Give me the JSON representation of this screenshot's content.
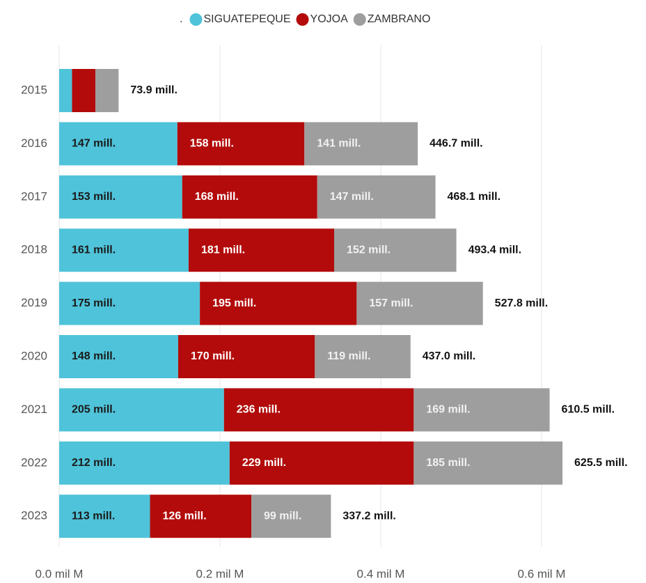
{
  "chart_data": {
    "type": "stacked_bar_horizontal",
    "legend_title": ".",
    "legend": "top",
    "categories": [
      "2015",
      "2016",
      "2017",
      "2018",
      "2019",
      "2020",
      "2021",
      "2022",
      "2023"
    ],
    "series": [
      {
        "name": "SIGUATEPEQUE",
        "color": "#4fc3d9",
        "label_color": "#1a1a1a",
        "values": [
          16,
          147,
          153,
          161,
          175,
          148,
          205,
          212,
          113
        ],
        "value_labels": [
          null,
          "147 mill.",
          "153 mill.",
          "161 mill.",
          "175 mill.",
          "148 mill.",
          "205 mill.",
          "212 mill.",
          "113 mill."
        ]
      },
      {
        "name": "YOJOA",
        "color": "#b30b0b",
        "label_color": "#ffffff",
        "values": [
          29,
          158,
          168,
          181,
          195,
          170,
          236,
          229,
          126
        ],
        "value_labels": [
          null,
          "158 mill.",
          "168 mill.",
          "181 mill.",
          "195 mill.",
          "170 mill.",
          "236 mill.",
          "229 mill.",
          "126 mill."
        ]
      },
      {
        "name": "ZAMBRANO",
        "color": "#9e9e9e",
        "label_color": "#f2f2f2",
        "values": [
          28.9,
          141,
          147,
          152,
          157,
          119,
          169,
          185,
          99
        ],
        "value_labels": [
          null,
          "141 mill.",
          "147 mill.",
          "152 mill.",
          "157 mill.",
          "119 mill.",
          "169 mill.",
          "185 mill.",
          "99 mill."
        ]
      }
    ],
    "totals": [
      73.9,
      446.7,
      468.1,
      493.4,
      527.8,
      437.0,
      610.5,
      625.5,
      337.2
    ],
    "total_labels": [
      "73.9 mill.",
      "446.7 mill.",
      "468.1 mill.",
      "493.4 mill.",
      "527.8 mill.",
      "437.0 mill.",
      "610.5 mill.",
      "625.5 mill.",
      "337.2 mill."
    ],
    "xlim": [
      0,
      700
    ],
    "xticks": [
      {
        "value": 0,
        "label": "0.0 mil M"
      },
      {
        "value": 200,
        "label": "0.2 mil M"
      },
      {
        "value": 400,
        "label": "0.4 mil M"
      },
      {
        "value": 600,
        "label": "0.6 mil M"
      }
    ],
    "grid": true
  }
}
